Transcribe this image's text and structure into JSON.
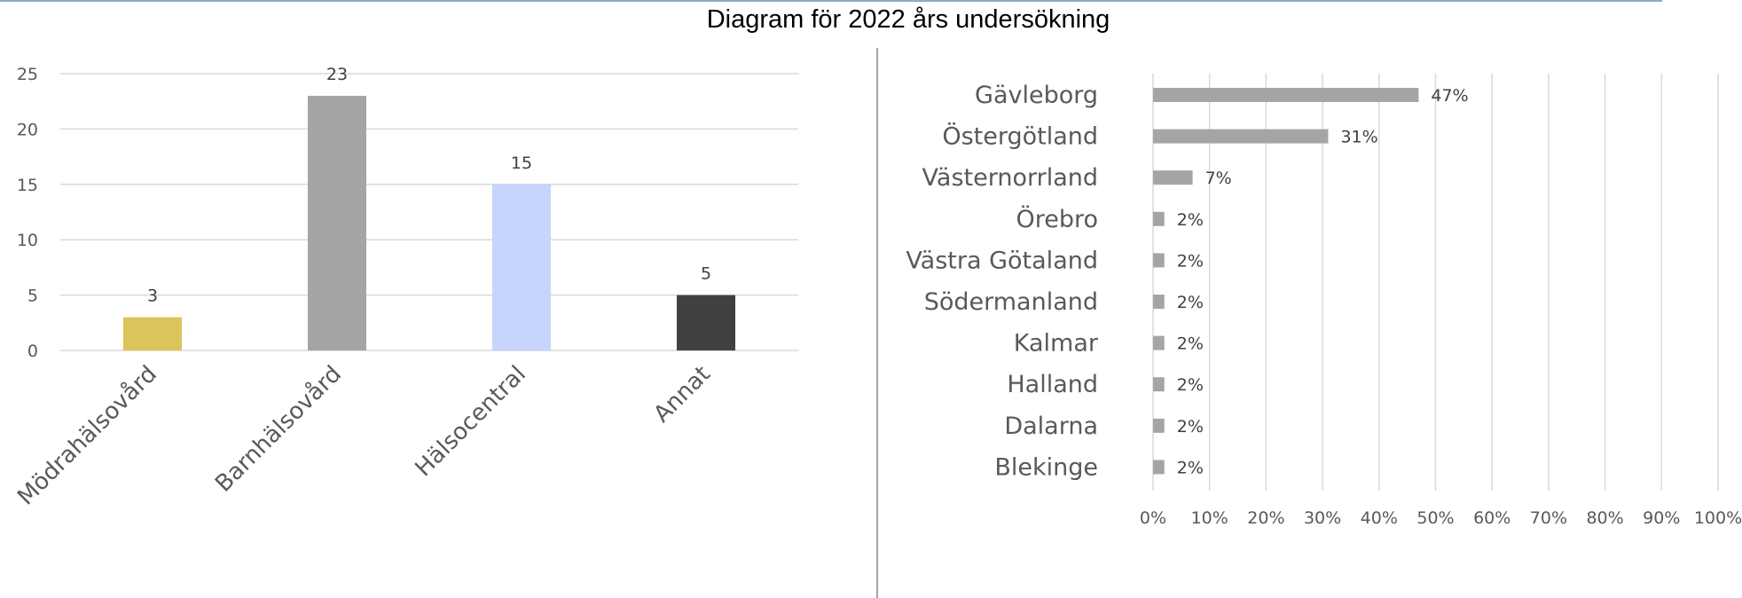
{
  "page": {
    "title": "Diagram för 2022 års undersökning"
  },
  "chart_data": [
    {
      "type": "bar",
      "title": "",
      "xlabel": "",
      "ylabel": "",
      "categories": [
        "Mödrahälsovård",
        "Barnhälsovård",
        "Hälsocentral",
        "Annat"
      ],
      "values": [
        3,
        23,
        15,
        5
      ],
      "data_labels": [
        "3",
        "23",
        "15",
        "5"
      ],
      "colors": [
        "#dcc45a",
        "#a5a5a5",
        "#c5d5fb",
        "#404040"
      ],
      "ylim": [
        0,
        25
      ],
      "yticks": [
        "0",
        "5",
        "10",
        "15",
        "20",
        "25"
      ],
      "grid": true,
      "legend": "none"
    },
    {
      "type": "bar",
      "orientation": "horizontal",
      "title": "",
      "xlabel": "",
      "ylabel": "",
      "categories": [
        "Gävleborg",
        "Östergötland",
        "Västernorrland",
        "Örebro",
        "Västra Götaland",
        "Södermanland",
        "Kalmar",
        "Halland",
        "Dalarna",
        "Blekinge"
      ],
      "values": [
        47,
        31,
        7,
        2,
        2,
        2,
        2,
        2,
        2,
        2
      ],
      "data_labels": [
        "47%",
        "31%",
        "7%",
        "2%",
        "2%",
        "2%",
        "2%",
        "2%",
        "2%",
        "2%"
      ],
      "color": "#a5a5a5",
      "xlim": [
        0,
        100
      ],
      "xticks": [
        "0%",
        "10%",
        "20%",
        "30%",
        "40%",
        "50%",
        "60%",
        "70%",
        "80%",
        "90%",
        "100%"
      ],
      "grid": true,
      "legend": "none"
    }
  ]
}
